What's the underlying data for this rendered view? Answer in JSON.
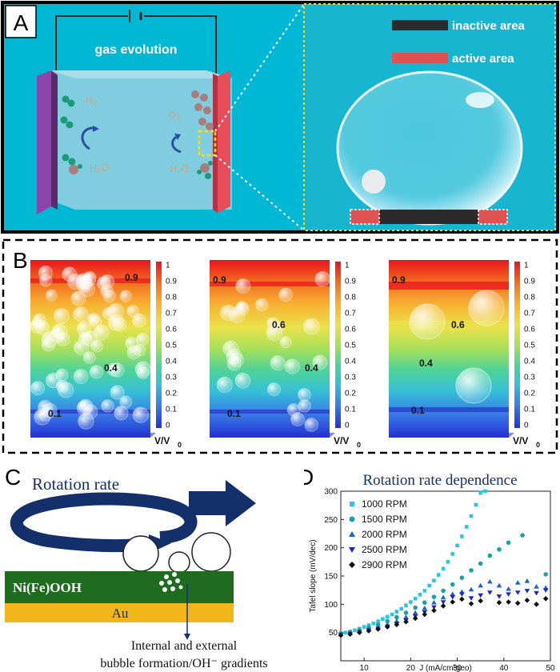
{
  "panelA": {
    "label": "A",
    "gas_evolution": "gas evolution",
    "species_h2": "H₂",
    "species_h2o_left": "H₂O",
    "species_o2": "O₂",
    "species_h2o_right": "H₂O",
    "legend_inactive": "inactive area",
    "legend_active": "active area",
    "colors": {
      "water": "#8ecfe0",
      "frame": "#00bcd4",
      "cathode": "#8e44ad",
      "anode": "#e74c5b",
      "inactive": "#2b2b2b",
      "active": "#e05252"
    }
  },
  "panelB": {
    "label": "B",
    "colorbar_ticks": [
      "1",
      "0.9",
      "0.8",
      "0.7",
      "0.6",
      "0.5",
      "0.4",
      "0.3",
      "0.2",
      "0.1",
      "0"
    ],
    "colorbar_unit": "V/V",
    "colorbar_unit_sub": "0",
    "cells": [
      {
        "labels": [
          "0.9",
          "0.4",
          "0.1"
        ]
      },
      {
        "labels": [
          "0.9",
          "0.6",
          "0.4",
          "0.1"
        ]
      },
      {
        "labels": [
          "0.9",
          "0.6",
          "0.4",
          "0.1"
        ]
      }
    ]
  },
  "panelC": {
    "label": "C",
    "rotation_rate": "Rotation rate",
    "layer_top": "Ni(Fe)OOH",
    "layer_bottom": "Au",
    "caption_line1": "Internal and external",
    "caption_line2": "bubble formation/OH⁻ gradients",
    "colors": {
      "arrow": "#14306b",
      "film": "#1f6b1f",
      "gold": "#f2b51a"
    }
  },
  "panelD": {
    "label": "D",
    "chart_data": {
      "type": "scatter",
      "title": "Rotation rate dependence",
      "xlabel": "J (mA/cm²geo)",
      "ylabel": "Tafel slope (mV/dec)",
      "xlim": [
        5,
        50
      ],
      "ylim": [
        0,
        300
      ],
      "xticks": [
        "10",
        "20",
        "30",
        "40",
        "50"
      ],
      "yticks": [
        "50",
        "100",
        "150",
        "200",
        "250",
        "300"
      ],
      "series": [
        {
          "name": "1000 RPM",
          "marker": "square",
          "color": "#29c7df",
          "points": [
            [
              5,
              49
            ],
            [
              6,
              50
            ],
            [
              7,
              52
            ],
            [
              8,
              54
            ],
            [
              9,
              57
            ],
            [
              10,
              60
            ],
            [
              11,
              63
            ],
            [
              12,
              66
            ],
            [
              13,
              70
            ],
            [
              14,
              74
            ],
            [
              15,
              78
            ],
            [
              16,
              82
            ],
            [
              17,
              87
            ],
            [
              18,
              92
            ],
            [
              19,
              98
            ],
            [
              20,
              104
            ],
            [
              21,
              110
            ],
            [
              22,
              117
            ],
            [
              23,
              124
            ],
            [
              24,
              133
            ],
            [
              25,
              142
            ],
            [
              26,
              152
            ],
            [
              27,
              163
            ],
            [
              28,
              175
            ],
            [
              29,
              189
            ],
            [
              30,
              204
            ],
            [
              31,
              220
            ],
            [
              32,
              237
            ],
            [
              33,
              256
            ],
            [
              34,
              276
            ],
            [
              35,
              297
            ],
            [
              36,
              300
            ]
          ]
        },
        {
          "name": "1500 RPM",
          "marker": "circle",
          "color": "#17a3a5",
          "points": [
            [
              5,
              48
            ],
            [
              7,
              50
            ],
            [
              9,
              54
            ],
            [
              11,
              59
            ],
            [
              13,
              64
            ],
            [
              15,
              70
            ],
            [
              17,
              77
            ],
            [
              19,
              85
            ],
            [
              21,
              94
            ],
            [
              23,
              103
            ],
            [
              25,
              113
            ],
            [
              27,
              124
            ],
            [
              29,
              135
            ],
            [
              31,
              147
            ],
            [
              33,
              160
            ],
            [
              35,
              172
            ],
            [
              37,
              186
            ],
            [
              39,
              197
            ],
            [
              41,
              209
            ],
            [
              44,
              222
            ],
            [
              49,
              153
            ]
          ]
        },
        {
          "name": "2000 RPM",
          "marker": "triangle-up",
          "color": "#1f63c6",
          "points": [
            [
              5,
              47
            ],
            [
              7,
              49
            ],
            [
              9,
              52
            ],
            [
              11,
              55
            ],
            [
              13,
              59
            ],
            [
              15,
              64
            ],
            [
              17,
              70
            ],
            [
              19,
              77
            ],
            [
              21,
              85
            ],
            [
              23,
              93
            ],
            [
              25,
              103
            ],
            [
              27,
              112
            ],
            [
              29,
              118
            ],
            [
              31,
              122
            ],
            [
              33,
              126
            ],
            [
              35,
              133
            ],
            [
              37,
              140
            ],
            [
              39,
              133
            ],
            [
              41,
              127
            ],
            [
              43,
              138
            ],
            [
              45,
              141
            ],
            [
              47,
              131
            ],
            [
              49,
              129
            ]
          ]
        },
        {
          "name": "2500 RPM",
          "marker": "triangle-down",
          "color": "#1828d0",
          "points": [
            [
              5,
              46
            ],
            [
              7,
              48
            ],
            [
              9,
              51
            ],
            [
              11,
              54
            ],
            [
              13,
              57
            ],
            [
              15,
              61
            ],
            [
              17,
              66
            ],
            [
              19,
              72
            ],
            [
              21,
              79
            ],
            [
              23,
              86
            ],
            [
              25,
              95
            ],
            [
              27,
              104
            ],
            [
              29,
              113
            ],
            [
              31,
              118
            ],
            [
              33,
              111
            ],
            [
              35,
              116
            ],
            [
              37,
              121
            ],
            [
              39,
              114
            ],
            [
              41,
              118
            ],
            [
              43,
              121
            ],
            [
              45,
              124
            ],
            [
              47,
              120
            ],
            [
              49,
              125
            ]
          ]
        },
        {
          "name": "2900 RPM",
          "marker": "diamond",
          "color": "#111111",
          "points": [
            [
              5,
              45
            ],
            [
              7,
              47
            ],
            [
              9,
              50
            ],
            [
              11,
              53
            ],
            [
              13,
              56
            ],
            [
              15,
              60
            ],
            [
              17,
              64
            ],
            [
              19,
              69
            ],
            [
              21,
              75
            ],
            [
              23,
              82
            ],
            [
              25,
              89
            ],
            [
              27,
              97
            ],
            [
              29,
              104
            ],
            [
              31,
              109
            ],
            [
              33,
              101
            ],
            [
              35,
              106
            ],
            [
              39,
              103
            ],
            [
              41,
              104
            ],
            [
              43,
              102
            ],
            [
              45,
              107
            ],
            [
              47,
              100
            ],
            [
              49,
              110
            ]
          ]
        }
      ]
    }
  }
}
